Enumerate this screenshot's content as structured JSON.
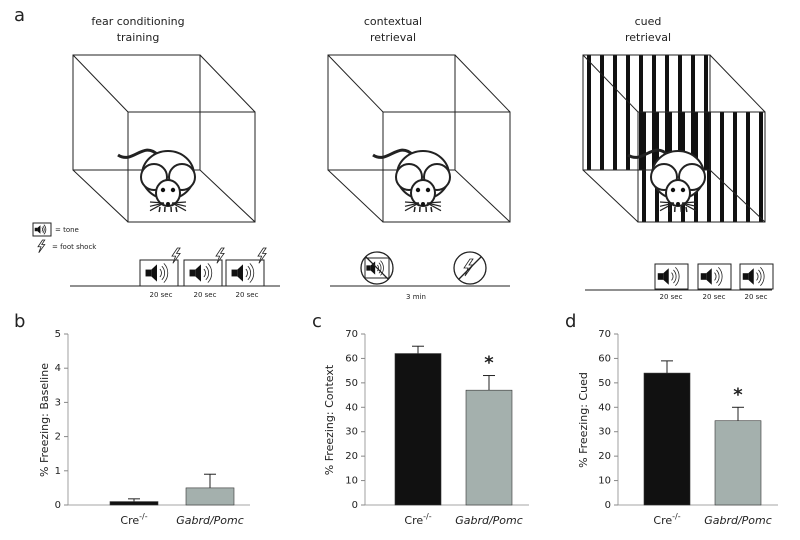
{
  "panel_labels": [
    "a",
    "b",
    "c",
    "d"
  ],
  "diagram": {
    "stages": [
      {
        "title": [
          "fear conditioning",
          "training"
        ],
        "durations": [
          "20 sec",
          "20 sec",
          "20 sec"
        ]
      },
      {
        "title": [
          "contextual",
          "retrieval"
        ],
        "durations": [
          "3 min"
        ]
      },
      {
        "title": [
          "cued",
          "retrieval"
        ],
        "durations": [
          "20 sec",
          "20 sec",
          "20 sec"
        ]
      }
    ],
    "legend": [
      "= tone",
      "= foot shock"
    ]
  },
  "chart_data": [
    {
      "type": "bar",
      "y_label": "% Freezing: Baseline",
      "categories": [
        {
          "text": "Cre",
          "sup": "-/-"
        },
        {
          "text": "Gabrd/Pomc",
          "italic": true
        }
      ],
      "values": [
        0.1,
        0.5
      ],
      "errors": [
        0.08,
        0.4
      ],
      "colors": [
        "#111111",
        "#a4b0ad"
      ],
      "ylim": [
        0,
        5
      ],
      "yticks": [
        0,
        1,
        2,
        3,
        4,
        5
      ],
      "markers": [
        null,
        null
      ]
    },
    {
      "type": "bar",
      "y_label": "% Freezing: Context",
      "categories": [
        {
          "text": "Cre",
          "sup": "-/-"
        },
        {
          "text": "Gabrd/Pomc",
          "italic": true
        }
      ],
      "values": [
        62,
        47
      ],
      "errors": [
        3,
        6
      ],
      "colors": [
        "#111111",
        "#a4b0ad"
      ],
      "ylim": [
        0,
        70
      ],
      "yticks": [
        0,
        10,
        20,
        30,
        40,
        50,
        60,
        70
      ],
      "markers": [
        null,
        "*"
      ]
    },
    {
      "type": "bar",
      "y_label": "% Freezing: Cued",
      "categories": [
        {
          "text": "Cre",
          "sup": "-/-"
        },
        {
          "text": "Gabrd/Pomc",
          "italic": true
        }
      ],
      "values": [
        54,
        34.5
      ],
      "errors": [
        5,
        5.5
      ],
      "colors": [
        "#111111",
        "#a4b0ad"
      ],
      "ylim": [
        0,
        70
      ],
      "yticks": [
        0,
        10,
        20,
        30,
        40,
        50,
        60,
        70
      ],
      "markers": [
        null,
        "*"
      ]
    }
  ]
}
